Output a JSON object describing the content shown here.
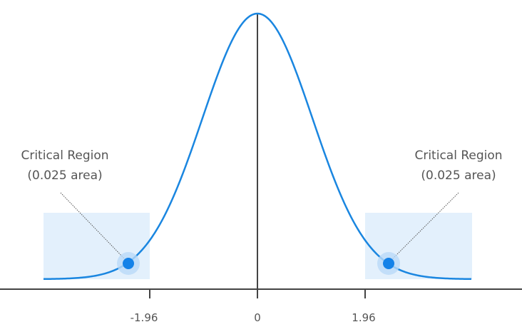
{
  "chart_data": {
    "type": "area",
    "title": "",
    "description": "Standard normal distribution with two-tailed critical regions",
    "xlabel": "",
    "ylabel": "",
    "xlim": [
      -3.9,
      4.7
    ],
    "x_ticks": [
      -1.96,
      0,
      1.96
    ],
    "x_tick_labels": [
      "-1.96",
      "0",
      "1.96"
    ],
    "grid": false,
    "series": [
      {
        "name": "Normal curve",
        "color": "#1a86e0",
        "mean": 0,
        "sd": 1
      }
    ],
    "regions": [
      {
        "name": "Left critical region",
        "from": -3.9,
        "to": -1.96,
        "area": 0.025
      },
      {
        "name": "Right critical region",
        "from": 1.96,
        "to": 3.9,
        "area": 0.025
      }
    ],
    "annotations": [
      {
        "text": "Critical Region\n(0.025 area)",
        "side": "left"
      },
      {
        "text": "Critical Region\n(0.025 area)",
        "side": "right"
      }
    ]
  },
  "labels": {
    "left_line1": "Critical Region",
    "left_line2": "(0.025 area)",
    "right_line1": "Critical Region",
    "right_line2": "(0.025 area)",
    "tick_neg": "-1.96",
    "tick_zero": "0",
    "tick_pos": "1.96"
  },
  "colors": {
    "curve": "#1a86e0",
    "shade": "#e3f0fc",
    "dot": "#1482e8",
    "dot_halo": "#b9d9f7",
    "axis": "#444444"
  }
}
